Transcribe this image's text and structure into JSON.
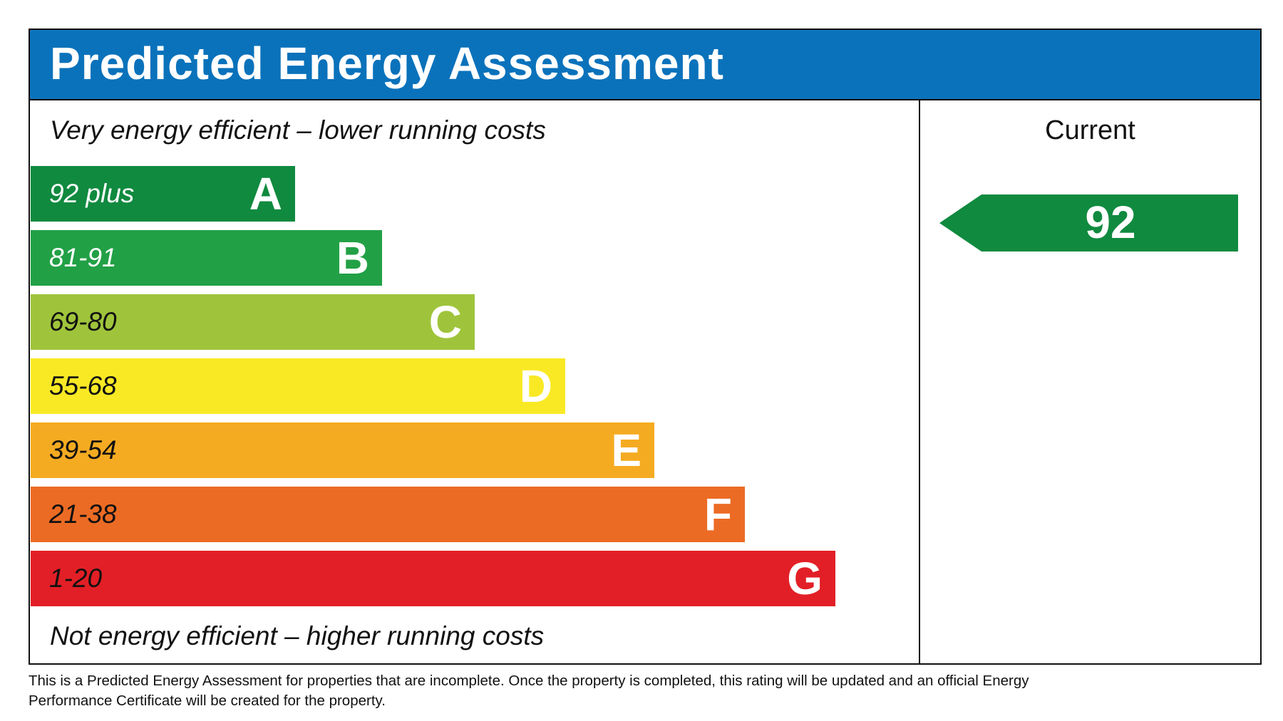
{
  "title": "Predicted Energy Assessment",
  "top_note": "Very energy efficient – lower running costs",
  "bottom_note": "Not energy efficient – higher running costs",
  "bands": [
    {
      "range": "92 plus",
      "letter": "A",
      "color": "#108a3f",
      "text_color": "#ffffff"
    },
    {
      "range": "81-91",
      "letter": "B",
      "color": "#22a045",
      "text_color": "#ffffff"
    },
    {
      "range": "69-80",
      "letter": "C",
      "color": "#9fc43b",
      "text_color": "#111111"
    },
    {
      "range": "55-68",
      "letter": "D",
      "color": "#f9e925",
      "text_color": "#111111"
    },
    {
      "range": "39-54",
      "letter": "E",
      "color": "#f5ab21",
      "text_color": "#111111"
    },
    {
      "range": "21-38",
      "letter": "F",
      "color": "#ec6b24",
      "text_color": "#111111"
    },
    {
      "range": "1-20",
      "letter": "G",
      "color": "#e21f26",
      "text_color": "#111111"
    }
  ],
  "current": {
    "label": "Current",
    "value": "92",
    "color": "#108a3f"
  },
  "footer": "This is a Predicted Energy Assessment for properties that are incomplete. Once the property is completed, this rating will be updated and an official Energy Performance Certificate will be created for the property.",
  "colors": {
    "header": "#0a72bb"
  }
}
